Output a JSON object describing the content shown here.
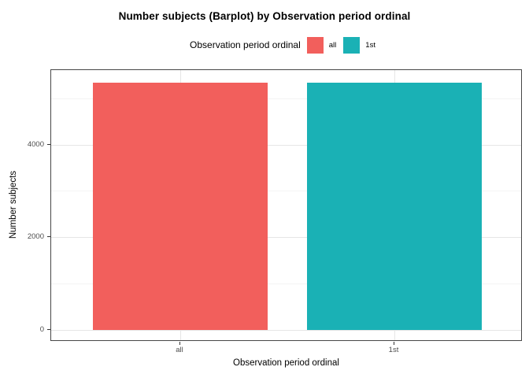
{
  "chart": {
    "title": "Number subjects (Barplot) by Observation period ordinal",
    "x_label": "Observation period ordinal",
    "y_label": "Number subjects"
  },
  "legend": {
    "title": "Observation period ordinal",
    "items": [
      {
        "label": "all",
        "color": "#F25F5C"
      },
      {
        "label": "1st",
        "color": "#1AB1B5"
      }
    ]
  },
  "chart_data": {
    "type": "bar",
    "title": "Number subjects (Barplot) by Observation period ordinal",
    "xlabel": "Observation period ordinal",
    "ylabel": "Number subjects",
    "categories": [
      "all",
      "1st"
    ],
    "values": [
      5345,
      5345
    ],
    "colors": [
      "#F25F5C",
      "#1AB1B5"
    ],
    "y_ticks": [
      0,
      2000,
      4000
    ],
    "y_tick_labels": [
      "0",
      "2000",
      "4000"
    ],
    "y_minor_gridlines": [
      1000,
      3000,
      5000
    ],
    "ylim": [
      -270,
      5620
    ],
    "grid": true,
    "legend_position": "top",
    "bar_orientation": "vertical"
  }
}
